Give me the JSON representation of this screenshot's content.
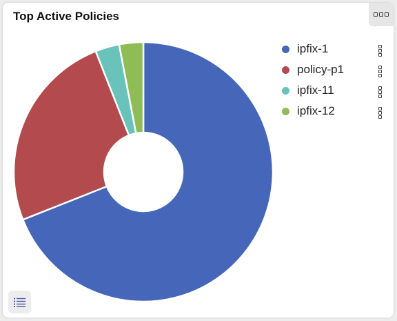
{
  "widget": {
    "title": "Top Active Policies",
    "menu_icon": "more-horizontal-icon",
    "list_icon": "list-icon"
  },
  "chart_data": {
    "type": "pie",
    "donut": true,
    "title": "Top Active Policies",
    "legend_position": "top-right",
    "categories": [
      "ipfix-1",
      "policy-p1",
      "ipfix-11",
      "ipfix-12"
    ],
    "values": [
      69,
      25,
      3,
      3
    ],
    "colors": [
      "#4667b9",
      "#b24a4e",
      "#69c3ba",
      "#8fbd55"
    ]
  }
}
